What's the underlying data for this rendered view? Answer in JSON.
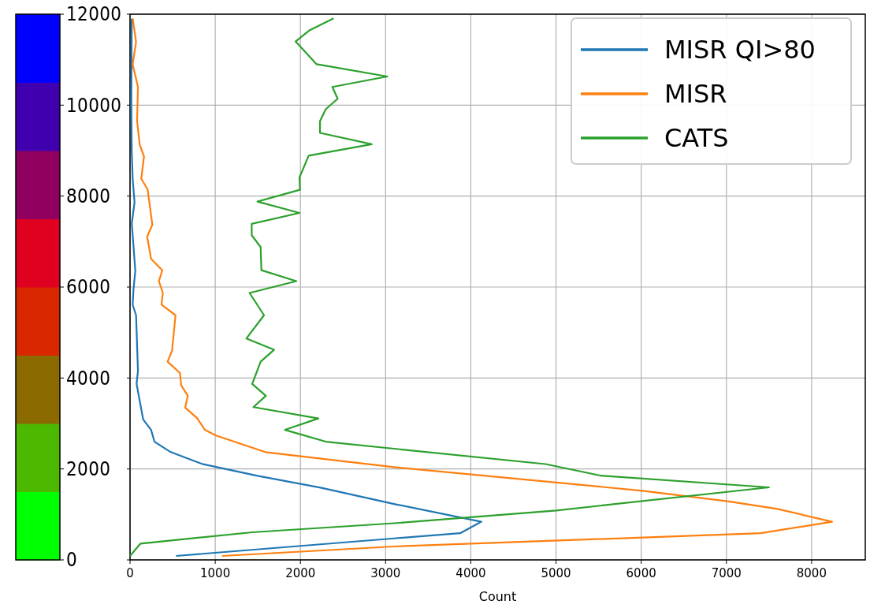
{
  "chart_data": {
    "type": "line",
    "xlabel": "Count",
    "xlim": [
      0,
      8630
    ],
    "ylim": [
      0,
      12000
    ],
    "xticks": [
      0,
      1000,
      2000,
      3000,
      4000,
      5000,
      6000,
      7000,
      8000
    ],
    "yticks": [
      0,
      2000,
      4000,
      6000,
      8000,
      10000,
      12000
    ],
    "grid": true,
    "legend": "top right",
    "line_style": "solid",
    "marker": "none",
    "series": [
      {
        "name": "MISR QI>80",
        "color": "#1f77b4",
        "x": [
          540,
          3099,
          3874,
          4124,
          3099,
          2236,
          1496,
          848,
          478,
          287,
          247,
          154,
          77,
          93,
          71,
          31,
          40,
          62,
          21,
          53,
          31,
          20,
          15,
          20
        ],
        "values": [
          87,
          473,
          586,
          840,
          1230,
          1590,
          1850,
          2110,
          2370,
          2600,
          2860,
          3090,
          3870,
          4160,
          5380,
          5610,
          5930,
          6360,
          7400,
          7860,
          8380,
          9000,
          10000,
          11900
        ]
      },
      {
        "name": "MISR",
        "color": "#ff7f0e",
        "x": [
          1080,
          3099,
          7404,
          8240,
          7600,
          7012,
          6017,
          3099,
          1588,
          1002,
          879,
          786,
          648,
          678,
          601,
          586,
          441,
          493,
          534,
          370,
          385,
          339,
          379,
          247,
          201,
          262,
          206,
          132,
          164,
          114,
          83,
          93,
          31,
          71,
          31
        ],
        "values": [
          87,
          295,
          586,
          840,
          1120,
          1290,
          1520,
          2040,
          2370,
          2740,
          2860,
          3120,
          3350,
          3610,
          3840,
          4110,
          4360,
          4600,
          5380,
          5610,
          5870,
          6130,
          6370,
          6620,
          7110,
          7370,
          8150,
          8380,
          8870,
          9130,
          9650,
          10400,
          10900,
          11390,
          11910
        ]
      },
      {
        "name": "CATS",
        "color": "#2ca02c",
        "x": [
          0,
          123,
          1434,
          3099,
          5003,
          7500,
          5518,
          4878,
          3099,
          2297,
          1819,
          2211,
          1449,
          1594,
          1434,
          1533,
          1690,
          1366,
          1573,
          1403,
          1952,
          1542,
          1533,
          1428,
          1428,
          1989,
          1496,
          1995,
          1989,
          2097,
          2837,
          2230,
          2230,
          2297,
          2437,
          2375,
          3020,
          2190,
          1943,
          2110,
          2390
        ],
        "values": [
          87,
          359,
          607,
          806,
          1087,
          1595,
          1855,
          2107,
          2445,
          2600,
          2860,
          3110,
          3360,
          3610,
          3870,
          4360,
          4620,
          4870,
          5380,
          5870,
          6130,
          6370,
          6880,
          7140,
          7390,
          7630,
          7880,
          8140,
          8410,
          8890,
          9140,
          9390,
          9650,
          9910,
          10140,
          10400,
          10630,
          10900,
          11400,
          11650,
          11910
        ]
      }
    ]
  }
}
